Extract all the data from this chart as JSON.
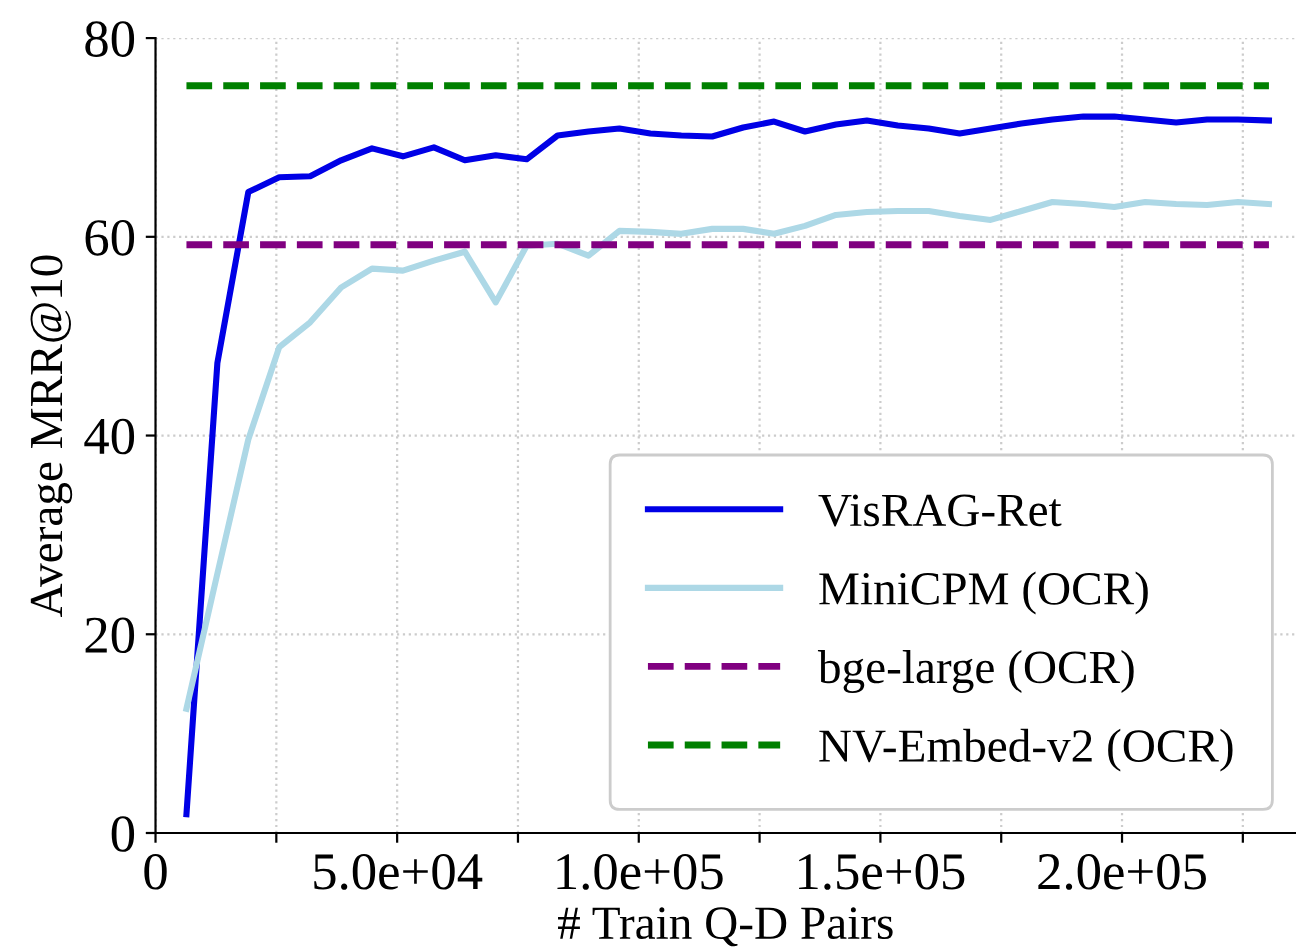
{
  "chart_data": {
    "type": "line",
    "xlabel": "# Train Q-D Pairs",
    "ylabel": "Average MRR@10",
    "x": [
      6400,
      12800,
      19200,
      25600,
      32000,
      38400,
      44800,
      51200,
      57600,
      64000,
      70400,
      76800,
      83200,
      89600,
      96000,
      102400,
      108800,
      115200,
      121600,
      128000,
      134400,
      140800,
      147200,
      153600,
      160000,
      166400,
      172800,
      179200,
      185600,
      192000,
      198400,
      204800,
      211200,
      217600,
      224000,
      230400
    ],
    "series": [
      {
        "name": "VisRAG-Ret",
        "color": "#0000e6",
        "line_style": "solid",
        "values": [
          1.9,
          47.3,
          64.5,
          66.0,
          66.1,
          67.7,
          68.9,
          68.1,
          69.0,
          67.7,
          68.2,
          67.8,
          70.2,
          70.6,
          70.9,
          70.4,
          70.2,
          70.1,
          71.0,
          71.6,
          70.6,
          71.3,
          71.7,
          71.2,
          70.9,
          70.4,
          70.9,
          71.4,
          71.8,
          72.1,
          72.1,
          71.8,
          71.5,
          71.8,
          71.8,
          71.7
        ]
      },
      {
        "name": "MiniCPM (OCR)",
        "color": "#add8e6",
        "line_style": "solid",
        "values": [
          12.5,
          26.1,
          39.6,
          48.9,
          51.4,
          54.9,
          56.8,
          56.6,
          57.6,
          58.5,
          53.4,
          59.1,
          59.3,
          58.1,
          60.6,
          60.5,
          60.3,
          60.8,
          60.8,
          60.3,
          61.1,
          62.2,
          62.5,
          62.6,
          62.6,
          62.1,
          61.7,
          62.6,
          63.5,
          63.3,
          63.0,
          63.5,
          63.3,
          63.2,
          63.5,
          63.3
        ]
      },
      {
        "name": "bge-large (OCR)",
        "color": "#800080",
        "line_style": "dashed",
        "values": [
          59.2,
          59.2,
          59.2,
          59.2,
          59.2,
          59.2,
          59.2,
          59.2,
          59.2,
          59.2,
          59.2,
          59.2,
          59.2,
          59.2,
          59.2,
          59.2,
          59.2,
          59.2,
          59.2,
          59.2,
          59.2,
          59.2,
          59.2,
          59.2,
          59.2,
          59.2,
          59.2,
          59.2,
          59.2,
          59.2,
          59.2,
          59.2,
          59.2,
          59.2,
          59.2,
          59.2
        ]
      },
      {
        "name": "NV-Embed-v2 (OCR)",
        "color": "#008000",
        "line_style": "dashed",
        "values": [
          75.2,
          75.2,
          75.2,
          75.2,
          75.2,
          75.2,
          75.2,
          75.2,
          75.2,
          75.2,
          75.2,
          75.2,
          75.2,
          75.2,
          75.2,
          75.2,
          75.2,
          75.2,
          75.2,
          75.2,
          75.2,
          75.2,
          75.2,
          75.2,
          75.2,
          75.2,
          75.2,
          75.2,
          75.2,
          75.2,
          75.2,
          75.2,
          75.2,
          75.2,
          75.2,
          75.2
        ]
      }
    ],
    "xlim": [
      0,
      236000
    ],
    "ylim": [
      0,
      80
    ],
    "xticks": [
      0,
      {
        "value": 25000,
        "label": null
      },
      {
        "value": 50000,
        "label": "5.0e+04"
      },
      {
        "value": 75000,
        "label": null
      },
      {
        "value": 100000,
        "label": "1.0e+05"
      },
      {
        "value": 125000,
        "label": null
      },
      {
        "value": 150000,
        "label": "1.5e+05"
      },
      {
        "value": 175000,
        "label": null
      },
      {
        "value": 200000,
        "label": "2.0e+05"
      },
      {
        "value": 225000,
        "label": null
      }
    ],
    "yticks": [
      0,
      20,
      40,
      60,
      80
    ],
    "grid": true,
    "legend": "bottom right",
    "marker": "none"
  }
}
